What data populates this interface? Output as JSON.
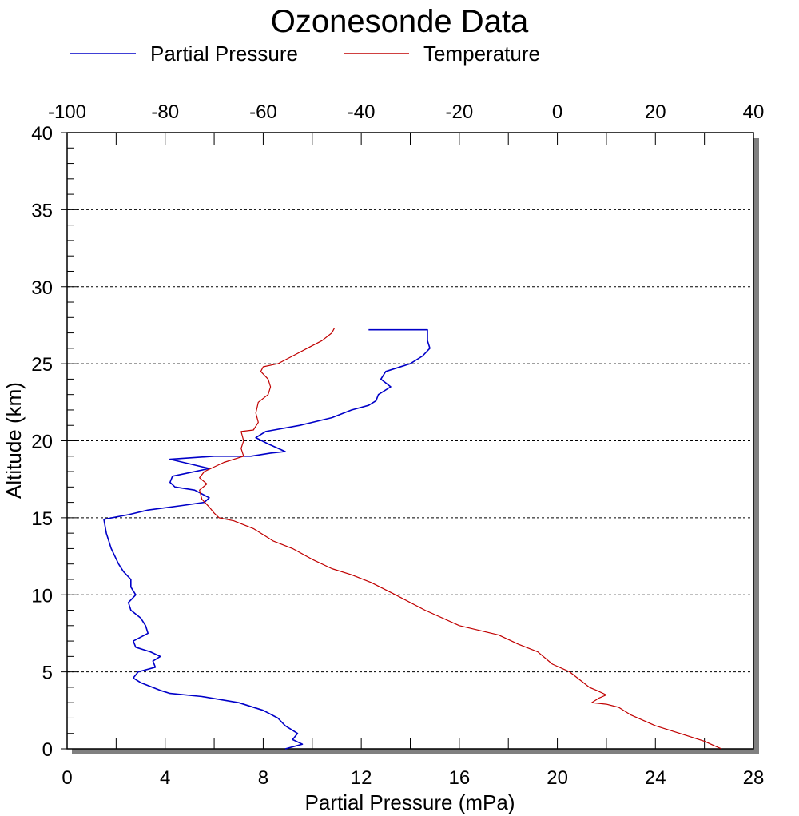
{
  "chart_data": {
    "type": "line",
    "title": "Ozonesonde Data",
    "ylabel": "Altitude (km)",
    "xlabel_bottom": "Partial Pressure (mPa)",
    "xlabel_top": "",
    "ylim": [
      0,
      40
    ],
    "xlim_bottom": [
      0,
      28
    ],
    "xlim_top": [
      -100,
      40
    ],
    "y_ticks": [
      "0",
      "5",
      "10",
      "15",
      "20",
      "25",
      "30",
      "35",
      "40"
    ],
    "x_bottom_ticks": [
      "0",
      "4",
      "8",
      "12",
      "16",
      "20",
      "24",
      "28"
    ],
    "x_top_ticks": [
      "-100",
      "-80",
      "-60",
      "-40",
      "-20",
      "0",
      "20",
      "40"
    ],
    "gridlines_y": [
      5,
      10,
      15,
      20,
      25,
      30,
      35
    ],
    "legend_position": "top",
    "colors": {
      "partial_pressure": "#0000c8",
      "temperature": "#c00000",
      "shadow": "#808080"
    },
    "series": [
      {
        "name": "Partial Pressure",
        "axis": "bottom",
        "color": "#0000c8",
        "points": [
          [
            8.9,
            0.0
          ],
          [
            9.6,
            0.3
          ],
          [
            9.2,
            0.6
          ],
          [
            9.4,
            1.0
          ],
          [
            8.9,
            1.5
          ],
          [
            8.6,
            2.0
          ],
          [
            8.0,
            2.5
          ],
          [
            7.0,
            3.0
          ],
          [
            5.5,
            3.4
          ],
          [
            4.2,
            3.6
          ],
          [
            3.8,
            3.8
          ],
          [
            3.0,
            4.3
          ],
          [
            2.7,
            4.6
          ],
          [
            2.9,
            5.0
          ],
          [
            3.6,
            5.3
          ],
          [
            3.5,
            5.7
          ],
          [
            3.8,
            6.0
          ],
          [
            3.4,
            6.3
          ],
          [
            2.8,
            6.6
          ],
          [
            2.7,
            7.0
          ],
          [
            3.3,
            7.5
          ],
          [
            3.2,
            8.0
          ],
          [
            3.0,
            8.5
          ],
          [
            2.6,
            9.0
          ],
          [
            2.5,
            9.5
          ],
          [
            2.8,
            10.0
          ],
          [
            2.6,
            10.5
          ],
          [
            2.6,
            11.0
          ],
          [
            2.3,
            11.5
          ],
          [
            2.1,
            12.0
          ],
          [
            1.8,
            13.0
          ],
          [
            1.6,
            14.0
          ],
          [
            1.5,
            14.9
          ],
          [
            2.5,
            15.2
          ],
          [
            3.3,
            15.5
          ],
          [
            4.7,
            15.8
          ],
          [
            5.6,
            16.0
          ],
          [
            5.8,
            16.3
          ],
          [
            5.2,
            16.8
          ],
          [
            4.4,
            17.0
          ],
          [
            4.2,
            17.3
          ],
          [
            4.3,
            17.7
          ],
          [
            5.8,
            18.2
          ],
          [
            5.0,
            18.5
          ],
          [
            4.2,
            18.8
          ],
          [
            6.0,
            19.0
          ],
          [
            7.5,
            19.0
          ],
          [
            8.3,
            19.2
          ],
          [
            8.9,
            19.3
          ],
          [
            8.2,
            19.8
          ],
          [
            7.7,
            20.2
          ],
          [
            8.1,
            20.6
          ],
          [
            9.5,
            21.0
          ],
          [
            10.8,
            21.5
          ],
          [
            11.6,
            22.0
          ],
          [
            12.3,
            22.3
          ],
          [
            12.6,
            22.6
          ],
          [
            12.7,
            23.0
          ],
          [
            13.2,
            23.5
          ],
          [
            12.8,
            24.0
          ],
          [
            13.0,
            24.5
          ],
          [
            14.0,
            25.0
          ],
          [
            14.5,
            25.5
          ],
          [
            14.8,
            26.0
          ],
          [
            14.7,
            26.5
          ],
          [
            14.7,
            27.2
          ],
          [
            12.3,
            27.2
          ]
        ]
      },
      {
        "name": "Temperature",
        "axis": "top",
        "color": "#c00000",
        "points": [
          [
            33.5,
            0.0
          ],
          [
            32.0,
            0.2
          ],
          [
            30.0,
            0.5
          ],
          [
            25.0,
            1.0
          ],
          [
            20.0,
            1.5
          ],
          [
            15.0,
            2.2
          ],
          [
            12.5,
            2.7
          ],
          [
            10.0,
            2.9
          ],
          [
            7.0,
            3.0
          ],
          [
            8.5,
            3.3
          ],
          [
            10.0,
            3.5
          ],
          [
            8.0,
            3.8
          ],
          [
            6.5,
            4.0
          ],
          [
            2.5,
            5.0
          ],
          [
            -1.0,
            5.5
          ],
          [
            -4.0,
            6.3
          ],
          [
            -8.0,
            6.8
          ],
          [
            -12.0,
            7.4
          ],
          [
            -20.0,
            8.0
          ],
          [
            -27.0,
            9.0
          ],
          [
            -33.0,
            10.0
          ],
          [
            -38.0,
            10.8
          ],
          [
            -42.0,
            11.3
          ],
          [
            -46.0,
            11.7
          ],
          [
            -50.0,
            12.3
          ],
          [
            -54.0,
            13.0
          ],
          [
            -58.0,
            13.5
          ],
          [
            -62.0,
            14.3
          ],
          [
            -66.0,
            14.8
          ],
          [
            -69.0,
            15.0
          ],
          [
            -70.0,
            15.3
          ],
          [
            -71.0,
            15.7
          ],
          [
            -72.5,
            16.2
          ],
          [
            -73.0,
            16.8
          ],
          [
            -71.5,
            17.2
          ],
          [
            -73.0,
            17.6
          ],
          [
            -72.0,
            18.0
          ],
          [
            -68.0,
            18.6
          ],
          [
            -64.0,
            19.0
          ],
          [
            -64.5,
            19.5
          ],
          [
            -64.0,
            20.0
          ],
          [
            -64.5,
            20.6
          ],
          [
            -62.0,
            20.7
          ],
          [
            -61.0,
            21.2
          ],
          [
            -61.5,
            21.8
          ],
          [
            -61.0,
            22.5
          ],
          [
            -59.0,
            23.0
          ],
          [
            -58.5,
            23.5
          ],
          [
            -59.0,
            24.0
          ],
          [
            -60.5,
            24.5
          ],
          [
            -60.0,
            24.8
          ],
          [
            -57.0,
            25.0
          ],
          [
            -54.0,
            25.5
          ],
          [
            -51.0,
            26.0
          ],
          [
            -48.0,
            26.5
          ],
          [
            -46.0,
            27.0
          ],
          [
            -45.5,
            27.3
          ]
        ]
      }
    ]
  }
}
